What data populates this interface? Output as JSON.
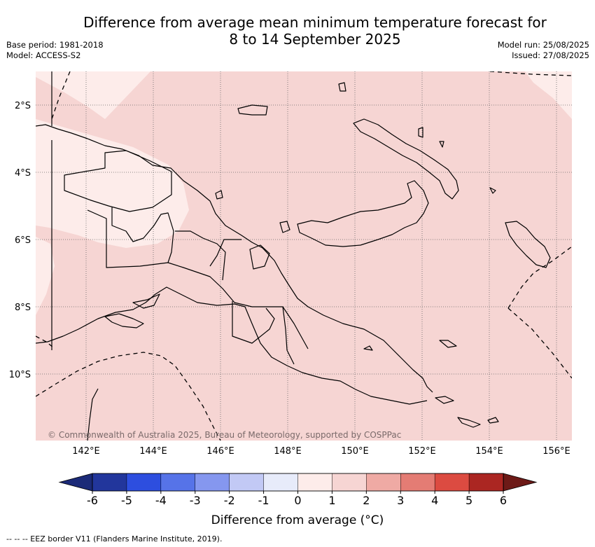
{
  "title": {
    "line1": "Difference from average mean minimum temperature forecast for",
    "line2": "8 to 14 September 2025"
  },
  "meta": {
    "base_period": "Base period: 1981-2018",
    "model": "Model: ACCESS-S2",
    "model_run": "Model run: 25/08/2025",
    "issued": "Issued: 27/08/2025"
  },
  "map": {
    "lat_labels": [
      "2°S",
      "4°S",
      "6°S",
      "8°S",
      "10°S"
    ],
    "lon_labels": [
      "142°E",
      "144°E",
      "146°E",
      "148°E",
      "150°E",
      "152°E",
      "154°E",
      "156°E"
    ],
    "copyright": "© Commonwealth of Australia 2025, Bureau of Meteorology, supported by COSPPac",
    "dominant_anomaly_range": "1 to 2",
    "secondary_anomaly_range": "0 to 1"
  },
  "colorbar": {
    "ticks": [
      "-6",
      "-5",
      "-4",
      "-3",
      "-2",
      "-1",
      "0",
      "1",
      "2",
      "3",
      "4",
      "5",
      "6"
    ],
    "colors": [
      "#22369c",
      "#2d4edf",
      "#5673e8",
      "#8597ef",
      "#c2c9f5",
      "#e7ebfa",
      "#fdecea",
      "#f6d5d3",
      "#efaaa4",
      "#e47c74",
      "#dc4b41",
      "#ab2622"
    ],
    "under_color": "#1b2a78",
    "over_color": "#6d1a17",
    "title": "Difference from average (°C)"
  },
  "footer": "--  --  -- EEZ border V11 (Flanders Marine Institute, 2019)."
}
